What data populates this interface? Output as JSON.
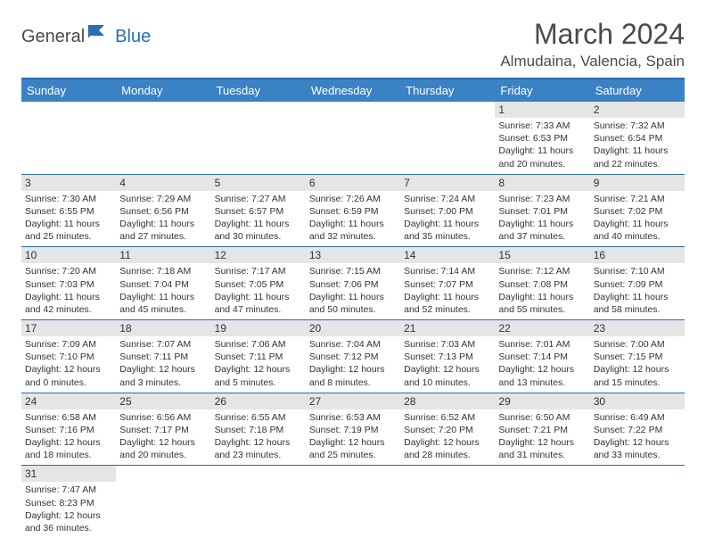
{
  "brand": {
    "part1": "General",
    "part2": "Blue"
  },
  "title": "March 2024",
  "location": "Almudaina, Valencia, Spain",
  "colors": {
    "header_bg": "#3b82c4",
    "header_border": "#2a6db0",
    "daynum_bg": "#e5e5e5",
    "text": "#333333",
    "brand_gray": "#4a4a4a",
    "brand_blue": "#2a6db0"
  },
  "weekdays": [
    "Sunday",
    "Monday",
    "Tuesday",
    "Wednesday",
    "Thursday",
    "Friday",
    "Saturday"
  ],
  "weeks": [
    [
      {
        "num": "",
        "sunrise": "",
        "sunset": "",
        "daylight": ""
      },
      {
        "num": "",
        "sunrise": "",
        "sunset": "",
        "daylight": ""
      },
      {
        "num": "",
        "sunrise": "",
        "sunset": "",
        "daylight": ""
      },
      {
        "num": "",
        "sunrise": "",
        "sunset": "",
        "daylight": ""
      },
      {
        "num": "",
        "sunrise": "",
        "sunset": "",
        "daylight": ""
      },
      {
        "num": "1",
        "sunrise": "Sunrise: 7:33 AM",
        "sunset": "Sunset: 6:53 PM",
        "daylight": "Daylight: 11 hours and 20 minutes."
      },
      {
        "num": "2",
        "sunrise": "Sunrise: 7:32 AM",
        "sunset": "Sunset: 6:54 PM",
        "daylight": "Daylight: 11 hours and 22 minutes."
      }
    ],
    [
      {
        "num": "3",
        "sunrise": "Sunrise: 7:30 AM",
        "sunset": "Sunset: 6:55 PM",
        "daylight": "Daylight: 11 hours and 25 minutes."
      },
      {
        "num": "4",
        "sunrise": "Sunrise: 7:29 AM",
        "sunset": "Sunset: 6:56 PM",
        "daylight": "Daylight: 11 hours and 27 minutes."
      },
      {
        "num": "5",
        "sunrise": "Sunrise: 7:27 AM",
        "sunset": "Sunset: 6:57 PM",
        "daylight": "Daylight: 11 hours and 30 minutes."
      },
      {
        "num": "6",
        "sunrise": "Sunrise: 7:26 AM",
        "sunset": "Sunset: 6:59 PM",
        "daylight": "Daylight: 11 hours and 32 minutes."
      },
      {
        "num": "7",
        "sunrise": "Sunrise: 7:24 AM",
        "sunset": "Sunset: 7:00 PM",
        "daylight": "Daylight: 11 hours and 35 minutes."
      },
      {
        "num": "8",
        "sunrise": "Sunrise: 7:23 AM",
        "sunset": "Sunset: 7:01 PM",
        "daylight": "Daylight: 11 hours and 37 minutes."
      },
      {
        "num": "9",
        "sunrise": "Sunrise: 7:21 AM",
        "sunset": "Sunset: 7:02 PM",
        "daylight": "Daylight: 11 hours and 40 minutes."
      }
    ],
    [
      {
        "num": "10",
        "sunrise": "Sunrise: 7:20 AM",
        "sunset": "Sunset: 7:03 PM",
        "daylight": "Daylight: 11 hours and 42 minutes."
      },
      {
        "num": "11",
        "sunrise": "Sunrise: 7:18 AM",
        "sunset": "Sunset: 7:04 PM",
        "daylight": "Daylight: 11 hours and 45 minutes."
      },
      {
        "num": "12",
        "sunrise": "Sunrise: 7:17 AM",
        "sunset": "Sunset: 7:05 PM",
        "daylight": "Daylight: 11 hours and 47 minutes."
      },
      {
        "num": "13",
        "sunrise": "Sunrise: 7:15 AM",
        "sunset": "Sunset: 7:06 PM",
        "daylight": "Daylight: 11 hours and 50 minutes."
      },
      {
        "num": "14",
        "sunrise": "Sunrise: 7:14 AM",
        "sunset": "Sunset: 7:07 PM",
        "daylight": "Daylight: 11 hours and 52 minutes."
      },
      {
        "num": "15",
        "sunrise": "Sunrise: 7:12 AM",
        "sunset": "Sunset: 7:08 PM",
        "daylight": "Daylight: 11 hours and 55 minutes."
      },
      {
        "num": "16",
        "sunrise": "Sunrise: 7:10 AM",
        "sunset": "Sunset: 7:09 PM",
        "daylight": "Daylight: 11 hours and 58 minutes."
      }
    ],
    [
      {
        "num": "17",
        "sunrise": "Sunrise: 7:09 AM",
        "sunset": "Sunset: 7:10 PM",
        "daylight": "Daylight: 12 hours and 0 minutes."
      },
      {
        "num": "18",
        "sunrise": "Sunrise: 7:07 AM",
        "sunset": "Sunset: 7:11 PM",
        "daylight": "Daylight: 12 hours and 3 minutes."
      },
      {
        "num": "19",
        "sunrise": "Sunrise: 7:06 AM",
        "sunset": "Sunset: 7:11 PM",
        "daylight": "Daylight: 12 hours and 5 minutes."
      },
      {
        "num": "20",
        "sunrise": "Sunrise: 7:04 AM",
        "sunset": "Sunset: 7:12 PM",
        "daylight": "Daylight: 12 hours and 8 minutes."
      },
      {
        "num": "21",
        "sunrise": "Sunrise: 7:03 AM",
        "sunset": "Sunset: 7:13 PM",
        "daylight": "Daylight: 12 hours and 10 minutes."
      },
      {
        "num": "22",
        "sunrise": "Sunrise: 7:01 AM",
        "sunset": "Sunset: 7:14 PM",
        "daylight": "Daylight: 12 hours and 13 minutes."
      },
      {
        "num": "23",
        "sunrise": "Sunrise: 7:00 AM",
        "sunset": "Sunset: 7:15 PM",
        "daylight": "Daylight: 12 hours and 15 minutes."
      }
    ],
    [
      {
        "num": "24",
        "sunrise": "Sunrise: 6:58 AM",
        "sunset": "Sunset: 7:16 PM",
        "daylight": "Daylight: 12 hours and 18 minutes."
      },
      {
        "num": "25",
        "sunrise": "Sunrise: 6:56 AM",
        "sunset": "Sunset: 7:17 PM",
        "daylight": "Daylight: 12 hours and 20 minutes."
      },
      {
        "num": "26",
        "sunrise": "Sunrise: 6:55 AM",
        "sunset": "Sunset: 7:18 PM",
        "daylight": "Daylight: 12 hours and 23 minutes."
      },
      {
        "num": "27",
        "sunrise": "Sunrise: 6:53 AM",
        "sunset": "Sunset: 7:19 PM",
        "daylight": "Daylight: 12 hours and 25 minutes."
      },
      {
        "num": "28",
        "sunrise": "Sunrise: 6:52 AM",
        "sunset": "Sunset: 7:20 PM",
        "daylight": "Daylight: 12 hours and 28 minutes."
      },
      {
        "num": "29",
        "sunrise": "Sunrise: 6:50 AM",
        "sunset": "Sunset: 7:21 PM",
        "daylight": "Daylight: 12 hours and 31 minutes."
      },
      {
        "num": "30",
        "sunrise": "Sunrise: 6:49 AM",
        "sunset": "Sunset: 7:22 PM",
        "daylight": "Daylight: 12 hours and 33 minutes."
      }
    ],
    [
      {
        "num": "31",
        "sunrise": "Sunrise: 7:47 AM",
        "sunset": "Sunset: 8:23 PM",
        "daylight": "Daylight: 12 hours and 36 minutes."
      },
      {
        "num": "",
        "sunrise": "",
        "sunset": "",
        "daylight": ""
      },
      {
        "num": "",
        "sunrise": "",
        "sunset": "",
        "daylight": ""
      },
      {
        "num": "",
        "sunrise": "",
        "sunset": "",
        "daylight": ""
      },
      {
        "num": "",
        "sunrise": "",
        "sunset": "",
        "daylight": ""
      },
      {
        "num": "",
        "sunrise": "",
        "sunset": "",
        "daylight": ""
      },
      {
        "num": "",
        "sunrise": "",
        "sunset": "",
        "daylight": ""
      }
    ]
  ]
}
